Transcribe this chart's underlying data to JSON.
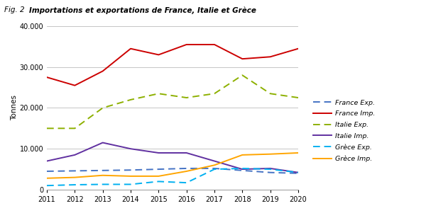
{
  "title_prefix": "Fig. 2 ",
  "title_bold": "Importations et exportations de France, Italie et Grèce",
  "years": [
    2011,
    2012,
    2013,
    2014,
    2015,
    2016,
    2017,
    2018,
    2019,
    2020
  ],
  "france_exp": [
    4500,
    4600,
    4700,
    4800,
    5000,
    5200,
    5200,
    4700,
    4200,
    4000
  ],
  "france_imp": [
    27500,
    25500,
    29000,
    34500,
    33000,
    35500,
    35500,
    32000,
    32500,
    34500
  ],
  "italie_exp": [
    15000,
    15000,
    20000,
    22000,
    23500,
    22500,
    23500,
    28000,
    23500,
    22500
  ],
  "italie_imp": [
    7000,
    8500,
    11500,
    10000,
    9000,
    9000,
    7000,
    5000,
    5200,
    4200
  ],
  "grece_exp": [
    1000,
    1200,
    1300,
    1300,
    2000,
    1700,
    5000,
    5200,
    5000,
    4200
  ],
  "grece_imp": [
    2800,
    3000,
    3500,
    3300,
    3300,
    4500,
    6000,
    8500,
    8700,
    9000
  ],
  "france_exp_color": "#4472C4",
  "france_imp_color": "#CC0000",
  "italie_exp_color": "#8DB000",
  "italie_imp_color": "#6030A0",
  "grece_exp_color": "#00B0F0",
  "grece_imp_color": "#FFA500",
  "ylabel": "Tonnes",
  "ylim": [
    0,
    40000
  ],
  "yticks": [
    0,
    10000,
    20000,
    30000,
    40000
  ],
  "background_color": "#ffffff",
  "grid_color": "#bbbbbb"
}
